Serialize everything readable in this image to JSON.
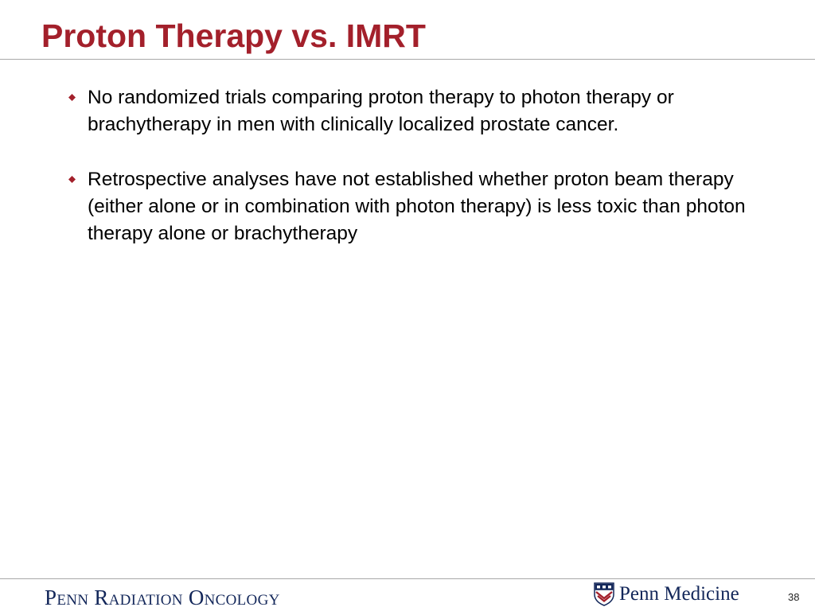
{
  "slide": {
    "title": "Proton Therapy vs. IMRT",
    "bullets": [
      "No randomized trials comparing proton therapy to photon therapy or brachytherapy in men with clinically localized prostate cancer.",
      "Retrospective analyses have not established whether proton beam therapy (either alone or in combination with photon therapy) is less toxic than photon therapy alone or brachytherapy"
    ],
    "bullet_icon": "diamond-bullet-icon",
    "page_number": "38"
  },
  "footer": {
    "department": "Penn Radiation Oncology",
    "logo_text": "Penn Medicine",
    "logo_icon": "penn-shield-icon"
  },
  "colors": {
    "title": "#a3202b",
    "bullet": "#a3202b",
    "footer_text": "#13275a",
    "rule": "#a8a8a8"
  }
}
